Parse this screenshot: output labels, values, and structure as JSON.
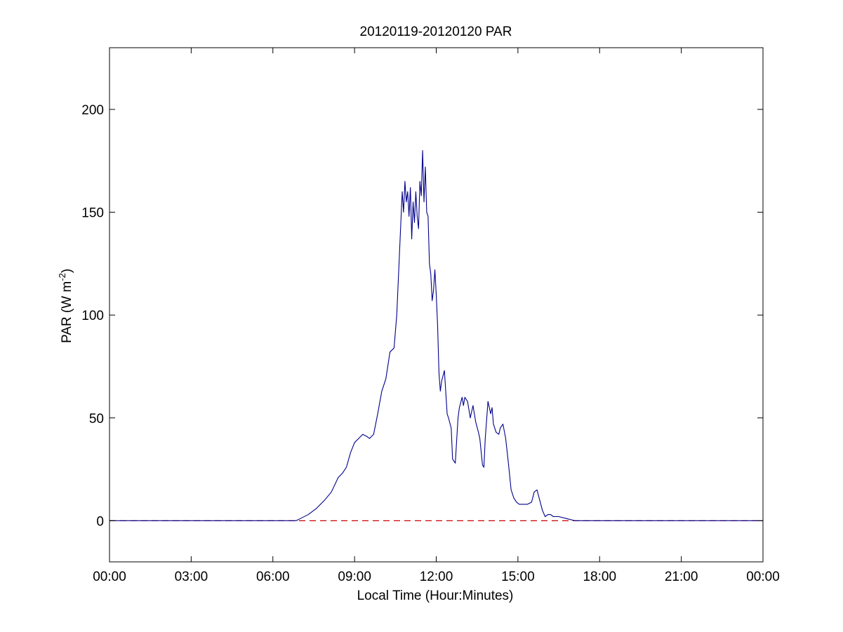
{
  "chart_data": {
    "type": "line",
    "title": "20120119-20120120 PAR",
    "xlabel": "Local Time (Hour:Minutes)",
    "ylabel_main": "PAR (W m",
    "ylabel_sup": "-2",
    "ylabel_close": ")",
    "xlim": [
      0,
      24
    ],
    "ylim": [
      -20,
      230
    ],
    "x_ticks": [
      0,
      3,
      6,
      9,
      12,
      15,
      18,
      21,
      24
    ],
    "x_tick_labels": [
      "00:00",
      "03:00",
      "06:00",
      "09:00",
      "12:00",
      "15:00",
      "18:00",
      "21:00",
      "00:00"
    ],
    "y_ticks": [
      0,
      50,
      100,
      150,
      200
    ],
    "y_tick_labels": [
      "0",
      "50",
      "100",
      "150",
      "200"
    ],
    "grid": false,
    "colors": {
      "series": "#00008b",
      "reference": "#cc0000",
      "axes": "#000000"
    },
    "reference_line": {
      "y": 0,
      "style": "dashed"
    },
    "series": [
      {
        "x": [
          0,
          6.85,
          7.0,
          7.3,
          7.6,
          7.9,
          8.15,
          8.4,
          8.55,
          8.7,
          8.85,
          9.0,
          9.15,
          9.3,
          9.45,
          9.55,
          9.7,
          9.85,
          10.0,
          10.15,
          10.3,
          10.45,
          10.55,
          10.65,
          10.75,
          10.8,
          10.85,
          10.9,
          10.95,
          11.0,
          11.05,
          11.1,
          11.15,
          11.2,
          11.25,
          11.3,
          11.35,
          11.4,
          11.45,
          11.5,
          11.55,
          11.6,
          11.65,
          11.7,
          11.75,
          11.8,
          11.85,
          11.9,
          11.95,
          12.0,
          12.05,
          12.1,
          12.15,
          12.2,
          12.3,
          12.4,
          12.45,
          12.55,
          12.6,
          12.7,
          12.8,
          12.85,
          12.95,
          13.0,
          13.05,
          13.15,
          13.25,
          13.35,
          13.45,
          13.55,
          13.6,
          13.7,
          13.75,
          13.8,
          13.9,
          14.0,
          14.05,
          14.1,
          14.2,
          14.3,
          14.35,
          14.45,
          14.55,
          14.65,
          14.75,
          14.85,
          14.95,
          15.05,
          15.2,
          15.35,
          15.5,
          15.6,
          15.7,
          15.8,
          15.9,
          16.0,
          16.1,
          16.2,
          16.3,
          16.5,
          16.8,
          17.1,
          17.4,
          17.6,
          24
        ],
        "y": [
          0,
          0,
          1,
          3,
          6,
          10,
          14,
          21,
          23,
          26,
          33,
          38,
          40,
          42,
          41,
          40,
          42,
          52,
          63,
          69,
          82,
          84,
          100,
          130,
          160,
          150,
          165,
          155,
          160,
          148,
          162,
          137,
          155,
          145,
          160,
          148,
          142,
          165,
          158,
          180,
          155,
          172,
          150,
          148,
          125,
          120,
          107,
          112,
          122,
          110,
          95,
          72,
          63,
          68,
          73,
          52,
          50,
          45,
          30,
          28,
          50,
          55,
          60,
          56,
          60,
          58,
          50,
          56,
          48,
          43,
          40,
          27,
          26,
          40,
          58,
          52,
          55,
          47,
          43,
          42,
          45,
          47,
          40,
          28,
          15,
          11,
          9,
          8,
          8,
          8,
          9,
          14,
          15,
          10,
          5,
          2,
          3,
          3,
          2,
          2,
          1,
          0,
          0,
          0,
          0
        ]
      }
    ]
  }
}
